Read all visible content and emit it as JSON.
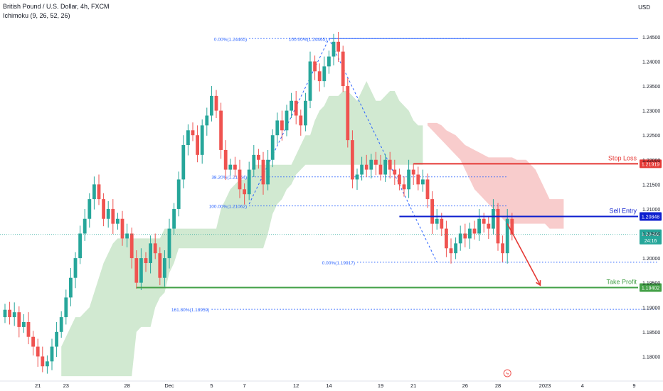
{
  "header": {
    "symbol": "British Pound / U.S. Dollar, 4h, FXCM",
    "indicator": "Ichimoku (9, 26, 52, 26)",
    "currency": "USD"
  },
  "colors": {
    "up": "#26a69a",
    "down": "#ef5350",
    "stop_loss": "#e53935",
    "sell_entry": "#0d1ecf",
    "take_profit": "#43a047",
    "fib": "#2962ff",
    "top_line": "#2962ff",
    "cloud_bull": "#cfe8cf",
    "cloud_bear": "#f8c9c9",
    "arrow": "#e53935",
    "price_label": "#26a69a"
  },
  "chart_data": {
    "type": "candlestick",
    "instrument": "GBPUSD",
    "timeframe": "4h",
    "ylim": [
      1.175,
      1.2525
    ],
    "y_ticks": [
      "1.24500",
      "1.24000",
      "1.23500",
      "1.23000",
      "1.22500",
      "1.22000",
      "1.21500",
      "1.21000",
      "1.20500",
      "1.20000",
      "1.19500",
      "1.19000",
      "1.18500",
      "1.18000"
    ],
    "x_ticks": [
      {
        "label": "21",
        "bar": 7
      },
      {
        "label": "23",
        "bar": 13
      },
      {
        "label": "28",
        "bar": 26
      },
      {
        "label": "Dec",
        "bar": 35
      },
      {
        "label": "5",
        "bar": 44
      },
      {
        "label": "7",
        "bar": 51
      },
      {
        "label": "12",
        "bar": 62
      },
      {
        "label": "14",
        "bar": 69
      },
      {
        "label": "19",
        "bar": 80
      },
      {
        "label": "21",
        "bar": 87
      },
      {
        "label": "26",
        "bar": 98
      },
      {
        "label": "28",
        "bar": 105
      },
      {
        "label": "2023",
        "bar": 115
      },
      {
        "label": "4",
        "bar": 123
      },
      {
        "label": "9",
        "bar": 134
      }
    ],
    "closes": [
      1.1895,
      1.188,
      1.189,
      1.186,
      1.187,
      1.184,
      1.182,
      1.18,
      1.178,
      1.179,
      1.182,
      1.185,
      1.188,
      1.192,
      1.196,
      1.2,
      1.205,
      1.208,
      1.212,
      1.215,
      1.212,
      1.208,
      1.21,
      1.207,
      1.208,
      1.204,
      1.205,
      1.2,
      1.195,
      1.2,
      1.199,
      1.203,
      1.201,
      1.196,
      1.2,
      1.206,
      1.21,
      1.216,
      1.223,
      1.226,
      1.225,
      1.221,
      1.227,
      1.229,
      1.233,
      1.23,
      1.222,
      1.218,
      1.219,
      1.218,
      1.214,
      1.213,
      1.218,
      1.221,
      1.22,
      1.215,
      1.22,
      1.225,
      1.228,
      1.226,
      1.23,
      1.232,
      1.229,
      1.227,
      1.232,
      1.24,
      1.238,
      1.236,
      1.239,
      1.241,
      1.244,
      1.242,
      1.235,
      1.224,
      1.216,
      1.217,
      1.219,
      1.218,
      1.22,
      1.219,
      1.217,
      1.22,
      1.218,
      1.217,
      1.215,
      1.214,
      1.218,
      1.217,
      1.215,
      1.216,
      1.212,
      1.207,
      1.208,
      1.206,
      1.202,
      1.201,
      1.203,
      1.205,
      1.204,
      1.206,
      1.205,
      1.208,
      1.207,
      1.206,
      1.21,
      1.203,
      1.201,
      1.208,
      1.2048
    ],
    "levels": [
      {
        "name": "Stop Loss",
        "value": 1.21919,
        "label": "1.21919",
        "from_bar": 87
      },
      {
        "name": "Sell Entry",
        "value": 1.20848,
        "label": "1.20848",
        "from_bar": 84
      },
      {
        "name": "Take Profit",
        "value": 1.19402,
        "label": "1.19402",
        "from_bar": 28
      }
    ],
    "current_price": {
      "value": 1.20482,
      "label": "1.20482",
      "countdown": "24:16"
    },
    "top_line": {
      "value": 1.24465,
      "from_bar": 69
    },
    "fib_upper": [
      {
        "label": "0.00%(1.24465)",
        "value": 1.24465,
        "from_bar": 52,
        "to_bar": 69
      },
      {
        "label": "100.00%(1.24465)",
        "value": 1.24465,
        "from_bar": 69,
        "to_bar": 99
      },
      {
        "label": "38.20%(1.21654)",
        "value": 1.21654,
        "from_bar": 52,
        "to_bar": 107
      },
      {
        "label": "100.00%(1.21062)",
        "value": 1.21062,
        "from_bar": 52,
        "to_bar": 107
      }
    ],
    "fib_lower": [
      {
        "label": "0.00%(1.19917)",
        "value": 1.19917,
        "from_bar": 75,
        "to_bar": 139
      },
      {
        "label": "161.80%(1.18959)",
        "value": 1.18959,
        "from_bar": 44,
        "to_bar": 139
      }
    ],
    "zigzag": [
      [
        52,
        1.211
      ],
      [
        69,
        1.24465
      ],
      [
        92,
        1.19917
      ]
    ],
    "cloud_bull": {
      "from_bar": 12,
      "upper": [
        1.182,
        1.184,
        1.186,
        1.188,
        1.188,
        1.189,
        1.19,
        1.193,
        1.196,
        1.199,
        1.201,
        1.203,
        1.204,
        1.204,
        1.204,
        1.204,
        1.204,
        1.204,
        1.204,
        1.204,
        1.204,
        1.204,
        1.206,
        1.206,
        1.206,
        1.206,
        1.206,
        1.206,
        1.206,
        1.206,
        1.206,
        1.206,
        1.206,
        1.206,
        1.21,
        1.212,
        1.214,
        1.215,
        1.216,
        1.216,
        1.217,
        1.219,
        1.219,
        1.219,
        1.219,
        1.219,
        1.219,
        1.219,
        1.219,
        1.219,
        1.221,
        1.223,
        1.225,
        1.225,
        1.228,
        1.23,
        1.231,
        1.233,
        1.233,
        1.233,
        1.234,
        1.234,
        1.233,
        1.232,
        1.234,
        1.236,
        1.234,
        1.232,
        1.232,
        1.233,
        1.234,
        1.234,
        1.232,
        1.231,
        1.23,
        1.228,
        1.227,
        1.227
      ],
      "lower": [
        1.176,
        1.176,
        1.176,
        1.176,
        1.176,
        1.176,
        1.176,
        1.176,
        1.176,
        1.176,
        1.176,
        1.176,
        1.176,
        1.176,
        1.176,
        1.176,
        1.185,
        1.186,
        1.186,
        1.186,
        1.19,
        1.192,
        1.193,
        1.197,
        1.199,
        1.202,
        1.202,
        1.202,
        1.202,
        1.202,
        1.202,
        1.202,
        1.202,
        1.202,
        1.202,
        1.202,
        1.202,
        1.202,
        1.202,
        1.202,
        1.202,
        1.202,
        1.202,
        1.202,
        1.205,
        1.209,
        1.211,
        1.212,
        1.214,
        1.215,
        1.217,
        1.218,
        1.219,
        1.219,
        1.219,
        1.219,
        1.219,
        1.219,
        1.219,
        1.219,
        1.219,
        1.219,
        1.219,
        1.219,
        1.219,
        1.219,
        1.219,
        1.219,
        1.219,
        1.219,
        1.219,
        1.219,
        1.219,
        1.219,
        1.219,
        1.219,
        1.219,
        1.219
      ]
    },
    "cloud_bear": {
      "from_bar": 90,
      "upper": [
        1.2275,
        1.2275,
        1.2275,
        1.227,
        1.226,
        1.2255,
        1.225,
        1.224,
        1.223,
        1.2225,
        1.222,
        1.2215,
        1.221,
        1.2205,
        1.2205,
        1.2205,
        1.2205,
        1.2205,
        1.2205,
        1.22,
        1.22,
        1.22,
        1.219,
        1.218,
        1.216,
        1.214,
        1.212,
        1.212,
        1.212,
        1.212
      ],
      "lower": [
        1.227,
        1.226,
        1.225,
        1.224,
        1.223,
        1.222,
        1.221,
        1.22,
        1.218,
        1.216,
        1.214,
        1.213,
        1.212,
        1.211,
        1.21,
        1.209,
        1.208,
        1.207,
        1.207,
        1.207,
        1.207,
        1.207,
        1.207,
        1.207,
        1.207,
        1.207,
        1.206,
        1.206,
        1.206,
        1.206
      ]
    },
    "projection_arrow": {
      "from": [
        107,
        1.207
      ],
      "to": [
        114,
        1.1945
      ]
    }
  }
}
